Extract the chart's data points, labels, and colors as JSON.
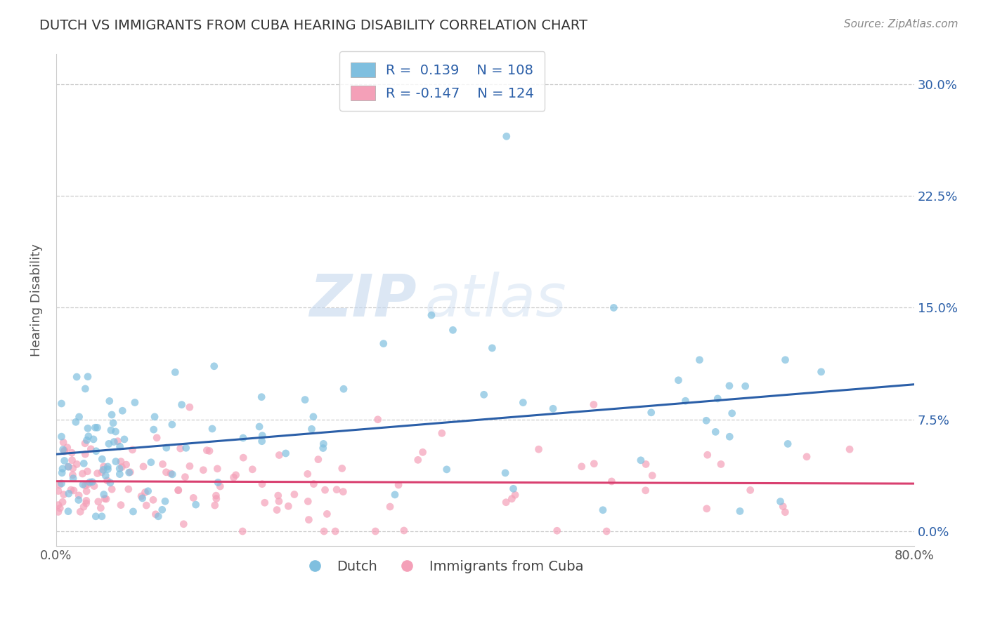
{
  "title": "DUTCH VS IMMIGRANTS FROM CUBA HEARING DISABILITY CORRELATION CHART",
  "source": "Source: ZipAtlas.com",
  "ylabel": "Hearing Disability",
  "ytick_vals": [
    0.0,
    7.5,
    15.0,
    22.5,
    30.0
  ],
  "xlim": [
    0.0,
    80.0
  ],
  "ylim": [
    -1.0,
    32.0
  ],
  "legend_r1": "R =  0.139",
  "legend_n1": "N = 108",
  "legend_r2": "R = -0.147",
  "legend_n2": "N = 124",
  "blue_color": "#7fbfdf",
  "pink_color": "#f4a0b8",
  "blue_line_color": "#2b5fa8",
  "pink_line_color": "#d94070",
  "title_color": "#333333",
  "legend_text_color": "#2b5fa8",
  "watermark_zip": "ZIP",
  "watermark_atlas": "atlas",
  "background_color": "#ffffff",
  "grid_color": "#cccccc",
  "blue_trend_x0": 0.0,
  "blue_trend_y0": 5.0,
  "blue_trend_x1": 80.0,
  "blue_trend_y1": 7.6,
  "pink_trend_x0": 0.0,
  "pink_trend_y0": 3.5,
  "pink_trend_x1": 80.0,
  "pink_trend_y1": 1.8
}
